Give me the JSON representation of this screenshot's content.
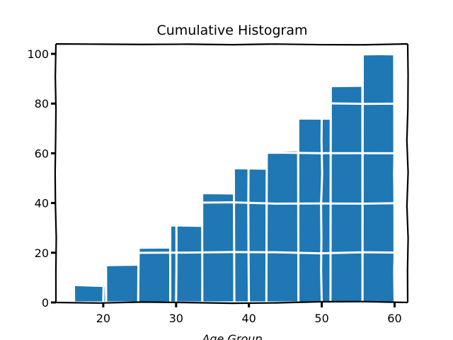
{
  "chart_data": {
    "type": "bar",
    "style": "xkcd sketch",
    "title": "Cumulative Histogram",
    "xlabel": "Age Group",
    "ylabel": "",
    "cumulative": true,
    "bin_edges": [
      16,
      20.4,
      24.8,
      29.2,
      33.6,
      38,
      42.4,
      46.8,
      51.2,
      55.6,
      60
    ],
    "values": [
      7,
      15,
      22,
      31,
      44,
      54,
      61,
      74,
      87,
      100
    ],
    "xlim": [
      13.5,
      61.8
    ],
    "ylim": [
      0,
      104
    ],
    "xticks": [
      20,
      30,
      40,
      50,
      60
    ],
    "yticks": [
      0,
      20,
      40,
      60,
      80,
      100
    ],
    "grid": true,
    "grid_color": "#ffffff",
    "bar_color": "#1f77b4"
  }
}
